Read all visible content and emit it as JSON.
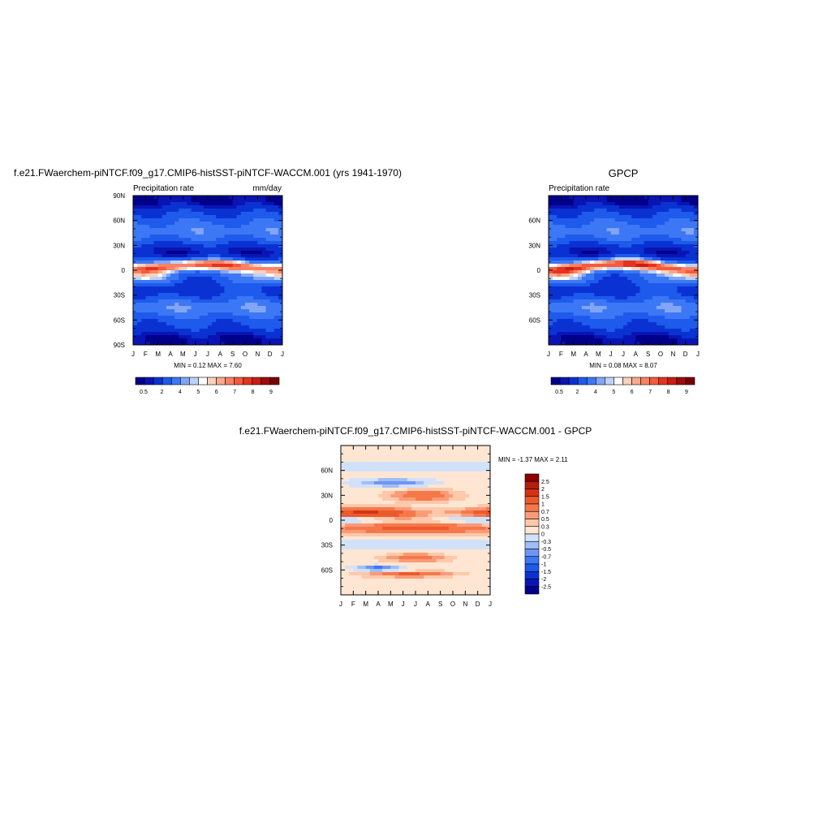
{
  "palette": {
    "levels": [
      "#00008a",
      "#0a14b4",
      "#0a32d2",
      "#1e5aeb",
      "#3c78f5",
      "#82a5f5",
      "#bed2fa",
      "#ffffff",
      "#fad2be",
      "#faaa8c",
      "#fa8264",
      "#f55a3c",
      "#e6321e",
      "#c81e14",
      "#a00a0a",
      "#780000"
    ],
    "diff": [
      "#00008a",
      "#0a14b4",
      "#0a32d2",
      "#1e5aeb",
      "#3c78f5",
      "#6e96f5",
      "#a0bef5",
      "#d2e1fa",
      "#ffe6d2",
      "#ffc8aa",
      "#fa9b78",
      "#f5784b",
      "#eb5a2d",
      "#d73214",
      "#b41e0a",
      "#8c0000"
    ]
  },
  "chart_data": [
    {
      "type": "heatmap",
      "title": "f.e21.FWaerchem-piNTCF.f09_g17.CMIP6-histSST-piNTCF-WACCM.001 (yrs 1941-1970)",
      "subtitle_left": "Precipitation rate",
      "subtitle_right": "mm/day",
      "minmax": "MIN =   0.12 MAX =   7.60",
      "x_ticks": [
        "J",
        "F",
        "M",
        "A",
        "M",
        "J",
        "J",
        "A",
        "S",
        "O",
        "N",
        "D",
        "J"
      ],
      "y_ticks": [
        "90N",
        "60N",
        "30N",
        "0",
        "30S",
        "60S",
        "90S"
      ],
      "ylim": [
        -90,
        90
      ],
      "colorbar_labels": [
        "0.5",
        "2",
        "4",
        "5",
        "6",
        "7",
        "8",
        "9"
      ],
      "itcz": {
        "amp": 7.6,
        "lat_jan": 2,
        "lat_jul": 7
      }
    },
    {
      "type": "heatmap",
      "title": "GPCP",
      "subtitle_left": "Precipitation rate",
      "subtitle_right": "",
      "minmax": "MIN =   0.08 MAX =   8.07",
      "x_ticks": [
        "J",
        "F",
        "M",
        "A",
        "M",
        "J",
        "J",
        "A",
        "S",
        "O",
        "N",
        "D",
        "J"
      ],
      "y_ticks": [
        "60N",
        "30N",
        "0",
        "30S",
        "60S"
      ],
      "ylim": [
        -90,
        90
      ],
      "colorbar_labels": [
        "0.5",
        "2",
        "4",
        "5",
        "6",
        "7",
        "8",
        "9"
      ],
      "itcz": {
        "amp": 8.07,
        "lat_jan": 1,
        "lat_jul": 8
      }
    },
    {
      "type": "heatmap",
      "title": "f.e21.FWaerchem-piNTCF.f09_g17.CMIP6-histSST-piNTCF-WACCM.001 - GPCP",
      "minmax": "MIN =  -1.37 MAX =   2.11",
      "x_ticks": [
        "J",
        "F",
        "M",
        "A",
        "M",
        "J",
        "J",
        "A",
        "S",
        "O",
        "N",
        "D",
        "J"
      ],
      "y_ticks": [
        "60N",
        "30N",
        "0",
        "30S",
        "60S"
      ],
      "ylim": [
        -90,
        90
      ],
      "colorbar_labels": [
        "2.5",
        "2",
        "1.5",
        "1",
        "0.7",
        "0.5",
        "0.3",
        "0",
        "-0.3",
        "-0.5",
        "-0.7",
        "-1",
        "-1.5",
        "-2",
        "-2.5"
      ]
    }
  ]
}
